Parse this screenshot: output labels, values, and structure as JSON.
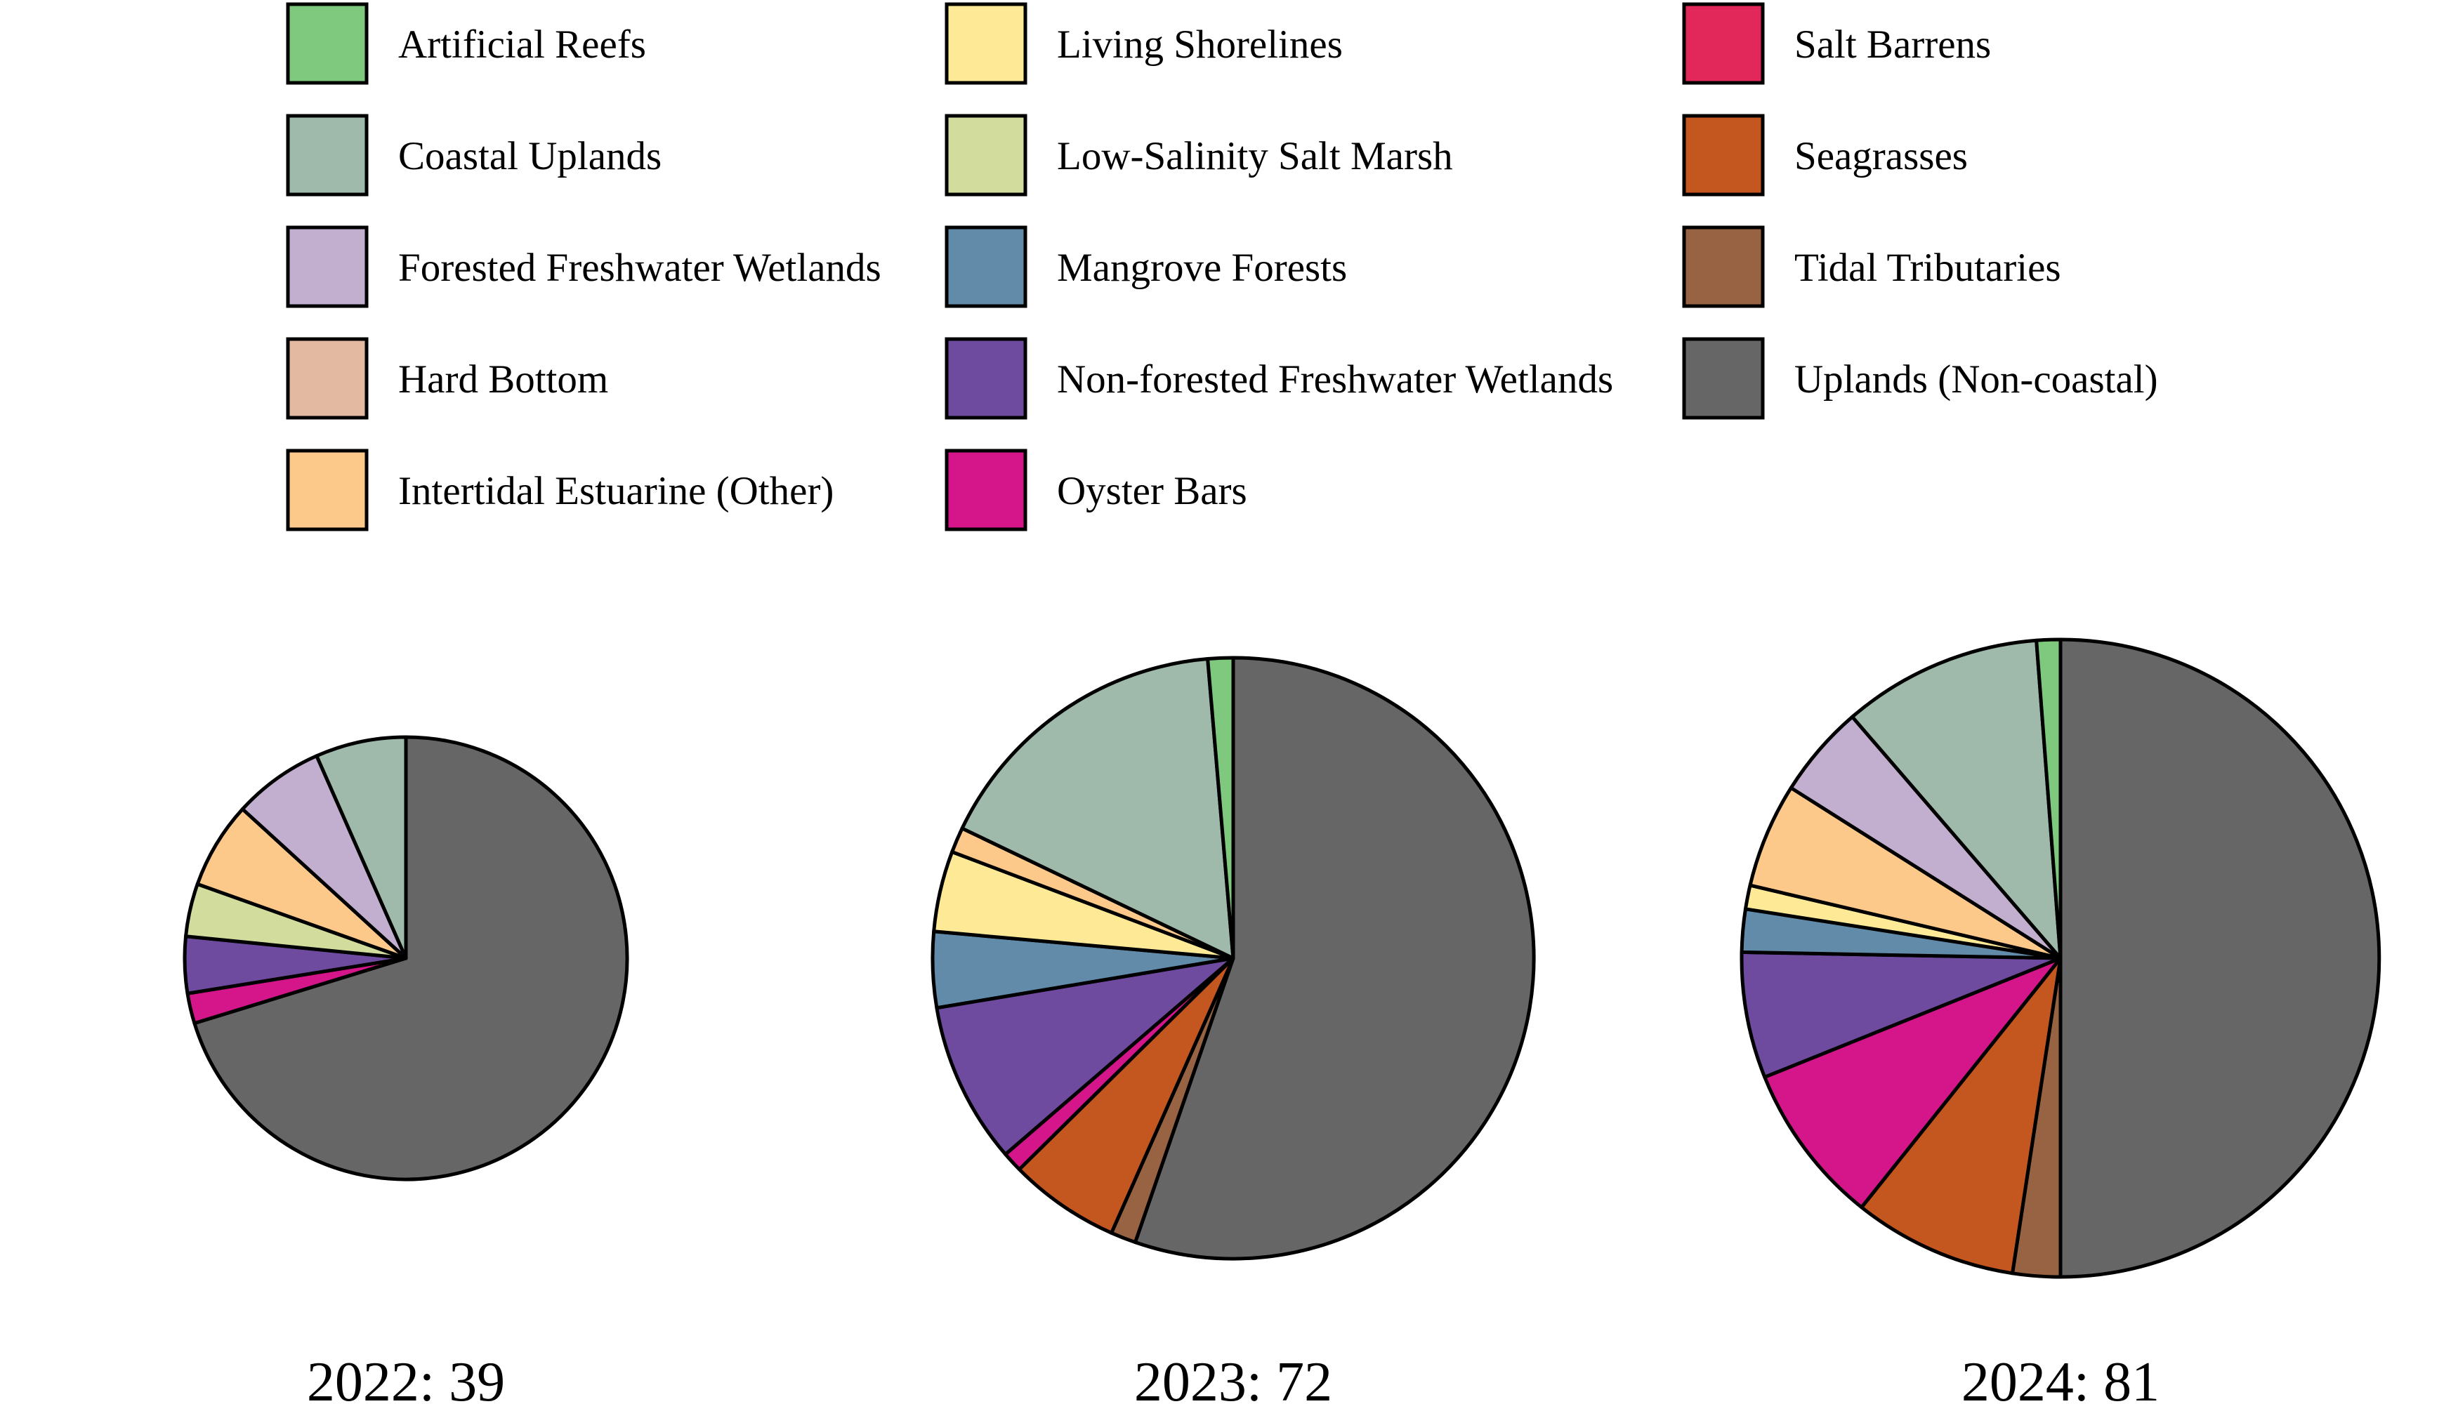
{
  "chart_data": {
    "type": "pie",
    "legend": {
      "placement": "top",
      "columns": 3,
      "entries": [
        {
          "name": "Artificial Reefs",
          "color": "#7fc97f"
        },
        {
          "name": "Coastal Uplands",
          "color": "#9fbaab"
        },
        {
          "name": "Forested Freshwater Wetlands",
          "color": "#c2afcf"
        },
        {
          "name": "Hard Bottom",
          "color": "#e4b9a2"
        },
        {
          "name": "Intertidal Estuarine (Other)",
          "color": "#fdc98b"
        },
        {
          "name": "Living Shorelines",
          "color": "#feea96"
        },
        {
          "name": "Low-Salinity Salt Marsh",
          "color": "#d2dd9d"
        },
        {
          "name": "Mangrove Forests",
          "color": "#628ba9"
        },
        {
          "name": "Non-forested Freshwater Wetlands",
          "color": "#6e4b9e"
        },
        {
          "name": "Oyster Bars",
          "color": "#d4168a"
        },
        {
          "name": "Salt Barrens",
          "color": "#e2275b"
        },
        {
          "name": "Seagrasses",
          "color": "#c4561f"
        },
        {
          "name": "Tidal Tributaries",
          "color": "#976342"
        },
        {
          "name": "Uplands (Non-coastal)",
          "color": "#666666"
        }
      ]
    },
    "pies": [
      {
        "title": "2022: 39",
        "year": 2022,
        "total": 39,
        "slices": [
          {
            "category": "Uplands (Non-coastal)",
            "value": 25.5
          },
          {
            "category": "Oyster Bars",
            "value": 0.8
          },
          {
            "category": "Non-forested Freshwater Wetlands",
            "value": 1.5
          },
          {
            "category": "Low-Salinity Salt Marsh",
            "value": 1.4
          },
          {
            "category": "Intertidal Estuarine (Other)",
            "value": 2.3
          },
          {
            "category": "Forested Freshwater Wetlands",
            "value": 2.4
          },
          {
            "category": "Coastal Uplands",
            "value": 2.4
          }
        ]
      },
      {
        "title": "2023: 72",
        "year": 2023,
        "total": 72,
        "slices": [
          {
            "category": "Uplands (Non-coastal)",
            "value": 40.8
          },
          {
            "category": "Tidal Tributaries",
            "value": 1.0
          },
          {
            "category": "Seagrasses",
            "value": 4.4
          },
          {
            "category": "Oyster Bars",
            "value": 0.8
          },
          {
            "category": "Non-forested Freshwater Wetlands",
            "value": 6.4
          },
          {
            "category": "Mangrove Forests",
            "value": 3.0
          },
          {
            "category": "Living Shorelines",
            "value": 3.2
          },
          {
            "category": "Intertidal Estuarine (Other)",
            "value": 1.0
          },
          {
            "category": "Coastal Uplands",
            "value": 12.2
          },
          {
            "category": "Artificial Reefs",
            "value": 1.0
          }
        ]
      },
      {
        "title": "2024: 81",
        "year": 2024,
        "total": 81,
        "slices": [
          {
            "category": "Uplands (Non-coastal)",
            "value": 41.5
          },
          {
            "category": "Tidal Tributaries",
            "value": 2.0
          },
          {
            "category": "Seagrasses",
            "value": 6.9
          },
          {
            "category": "Oyster Bars",
            "value": 6.8
          },
          {
            "category": "Non-forested Freshwater Wetlands",
            "value": 5.3
          },
          {
            "category": "Mangrove Forests",
            "value": 1.8
          },
          {
            "category": "Living Shorelines",
            "value": 1.0
          },
          {
            "category": "Intertidal Estuarine (Other)",
            "value": 4.4
          },
          {
            "category": "Forested Freshwater Wetlands",
            "value": 3.9
          },
          {
            "category": "Coastal Uplands",
            "value": 8.4
          },
          {
            "category": "Artificial Reefs",
            "value": 1.0
          }
        ]
      }
    ]
  }
}
